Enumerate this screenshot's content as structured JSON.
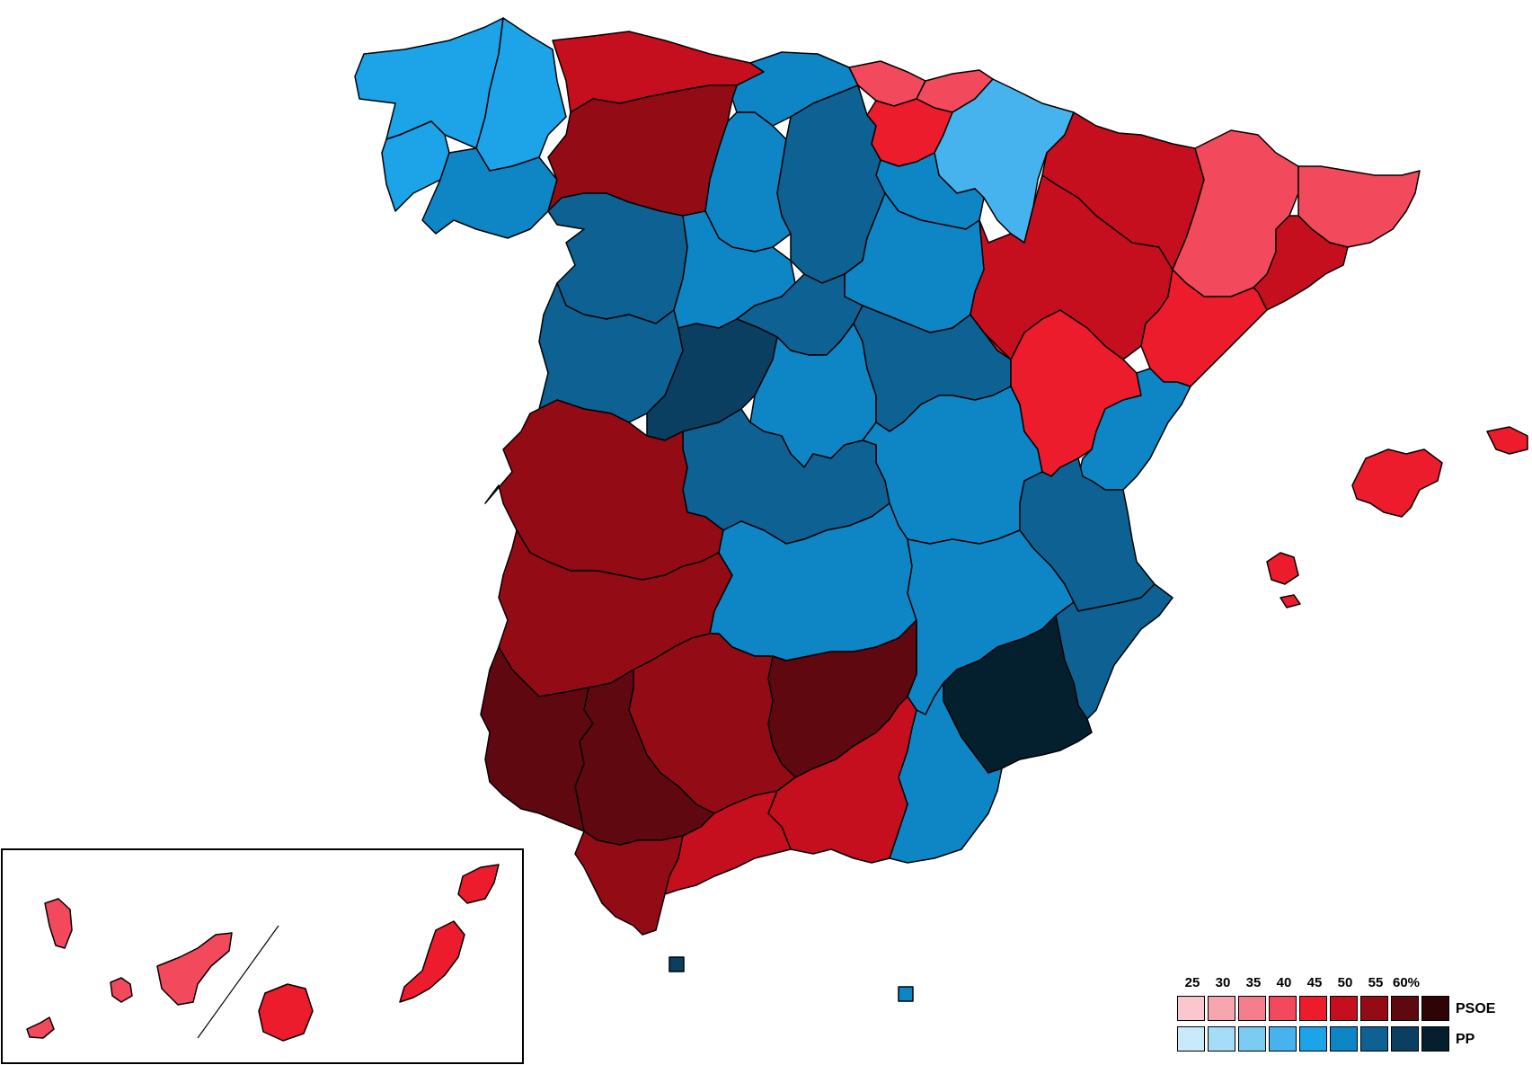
{
  "legend": {
    "ticks": [
      "25",
      "30",
      "35",
      "40",
      "45",
      "50",
      "55",
      "60%"
    ],
    "parties": [
      {
        "name": "PSOE",
        "colors": [
          "#f9c7cd",
          "#f7a6b0",
          "#f47e8b",
          "#f24a5c",
          "#ed1c2c",
          "#c50f1f",
          "#930c15",
          "#600810",
          "#2f0407"
        ]
      },
      {
        "name": "PP",
        "colors": [
          "#c9eafa",
          "#a5dcf6",
          "#7ccbf2",
          "#47b3ee",
          "#1ca3e8",
          "#0e85c5",
          "#0d6293",
          "#0a3f62",
          "#04202f"
        ]
      }
    ]
  },
  "colors": {
    "psoe_35": "#f24a5c",
    "psoe_40": "#ed1c2c",
    "psoe_45": "#c50f1f",
    "psoe_50": "#930c15",
    "psoe_55": "#600810",
    "pp_35": "#47b3ee",
    "pp_40": "#1ca3e8",
    "pp_45": "#0e85c5",
    "pp_50": "#0d6293",
    "pp_55": "#0a3f62",
    "pp_60": "#04202f"
  }
}
